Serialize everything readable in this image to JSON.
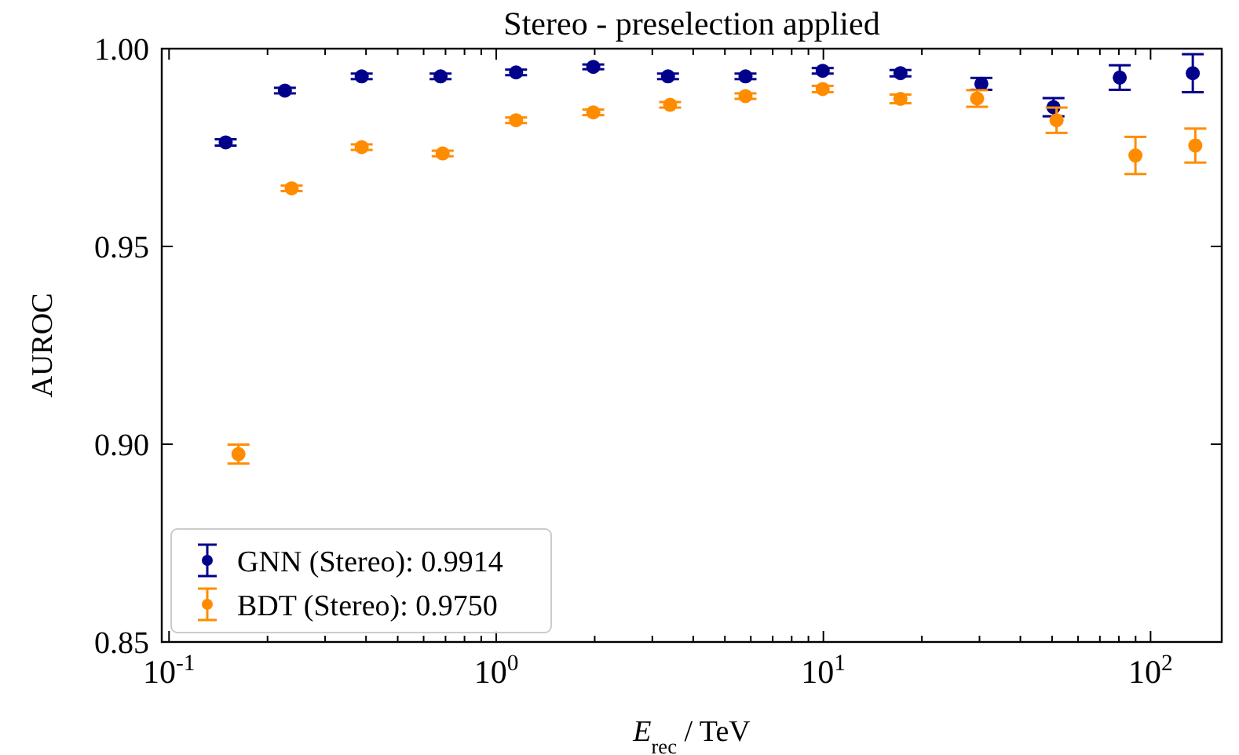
{
  "chart_data": {
    "type": "scatter",
    "title": "Stereo - preselection applied",
    "xlabel": "E$_{rec}$ / TeV",
    "ylabel": "AUROC",
    "log": "x",
    "marker": "circle",
    "legend": "bottom left",
    "grid": false,
    "xlim": [
      0.095,
      165
    ],
    "xticks": [
      {
        "value": 0.1,
        "label": "10$^{-1}$"
      },
      {
        "value": 1,
        "label": "10$^{0}$"
      },
      {
        "value": 10,
        "label": "10$^{1}$"
      },
      {
        "value": 100,
        "label": "10$^{2}$"
      }
    ],
    "ylim": [
      0.85,
      1.0
    ],
    "yticks": [
      0.85,
      {
        "value": 0.9,
        "label": "0.90"
      },
      0.95,
      {
        "value": 1.0,
        "label": "1.00"
      }
    ],
    "series": [
      {
        "name": "GNN (Stereo): 0.9914",
        "color": "#00008b",
        "x": [
          0.149,
          0.226,
          0.388,
          0.676,
          1.15,
          1.98,
          3.35,
          5.78,
          9.95,
          17.2,
          30.4,
          50.5,
          80.5,
          134.6
        ],
        "values": [
          0.9763,
          0.9894,
          0.993,
          0.993,
          0.994,
          0.9954,
          0.993,
          0.993,
          0.9944,
          0.9938,
          0.9911,
          0.9852,
          0.9927,
          0.9938
        ],
        "errors": [
          0.0008,
          0.0007,
          0.0007,
          0.0007,
          0.0007,
          0.0006,
          0.0007,
          0.0007,
          0.0007,
          0.0008,
          0.0015,
          0.0023,
          0.0031,
          0.0048
        ]
      },
      {
        "name": "BDT (Stereo): 0.9750",
        "color": "#ff8c00",
        "x": [
          0.163,
          0.237,
          0.388,
          0.686,
          1.15,
          1.98,
          3.4,
          5.78,
          9.95,
          17.2,
          29.5,
          51.6,
          89.9,
          137
        ],
        "values": [
          0.8975,
          0.9647,
          0.9751,
          0.9735,
          0.9819,
          0.9839,
          0.9858,
          0.988,
          0.9898,
          0.9873,
          0.9874,
          0.9819,
          0.973,
          0.9755
        ],
        "errors": [
          0.0024,
          0.0007,
          0.0007,
          0.0007,
          0.0007,
          0.0007,
          0.0007,
          0.0007,
          0.0008,
          0.0011,
          0.0021,
          0.0032,
          0.0047,
          0.0043
        ]
      }
    ]
  }
}
